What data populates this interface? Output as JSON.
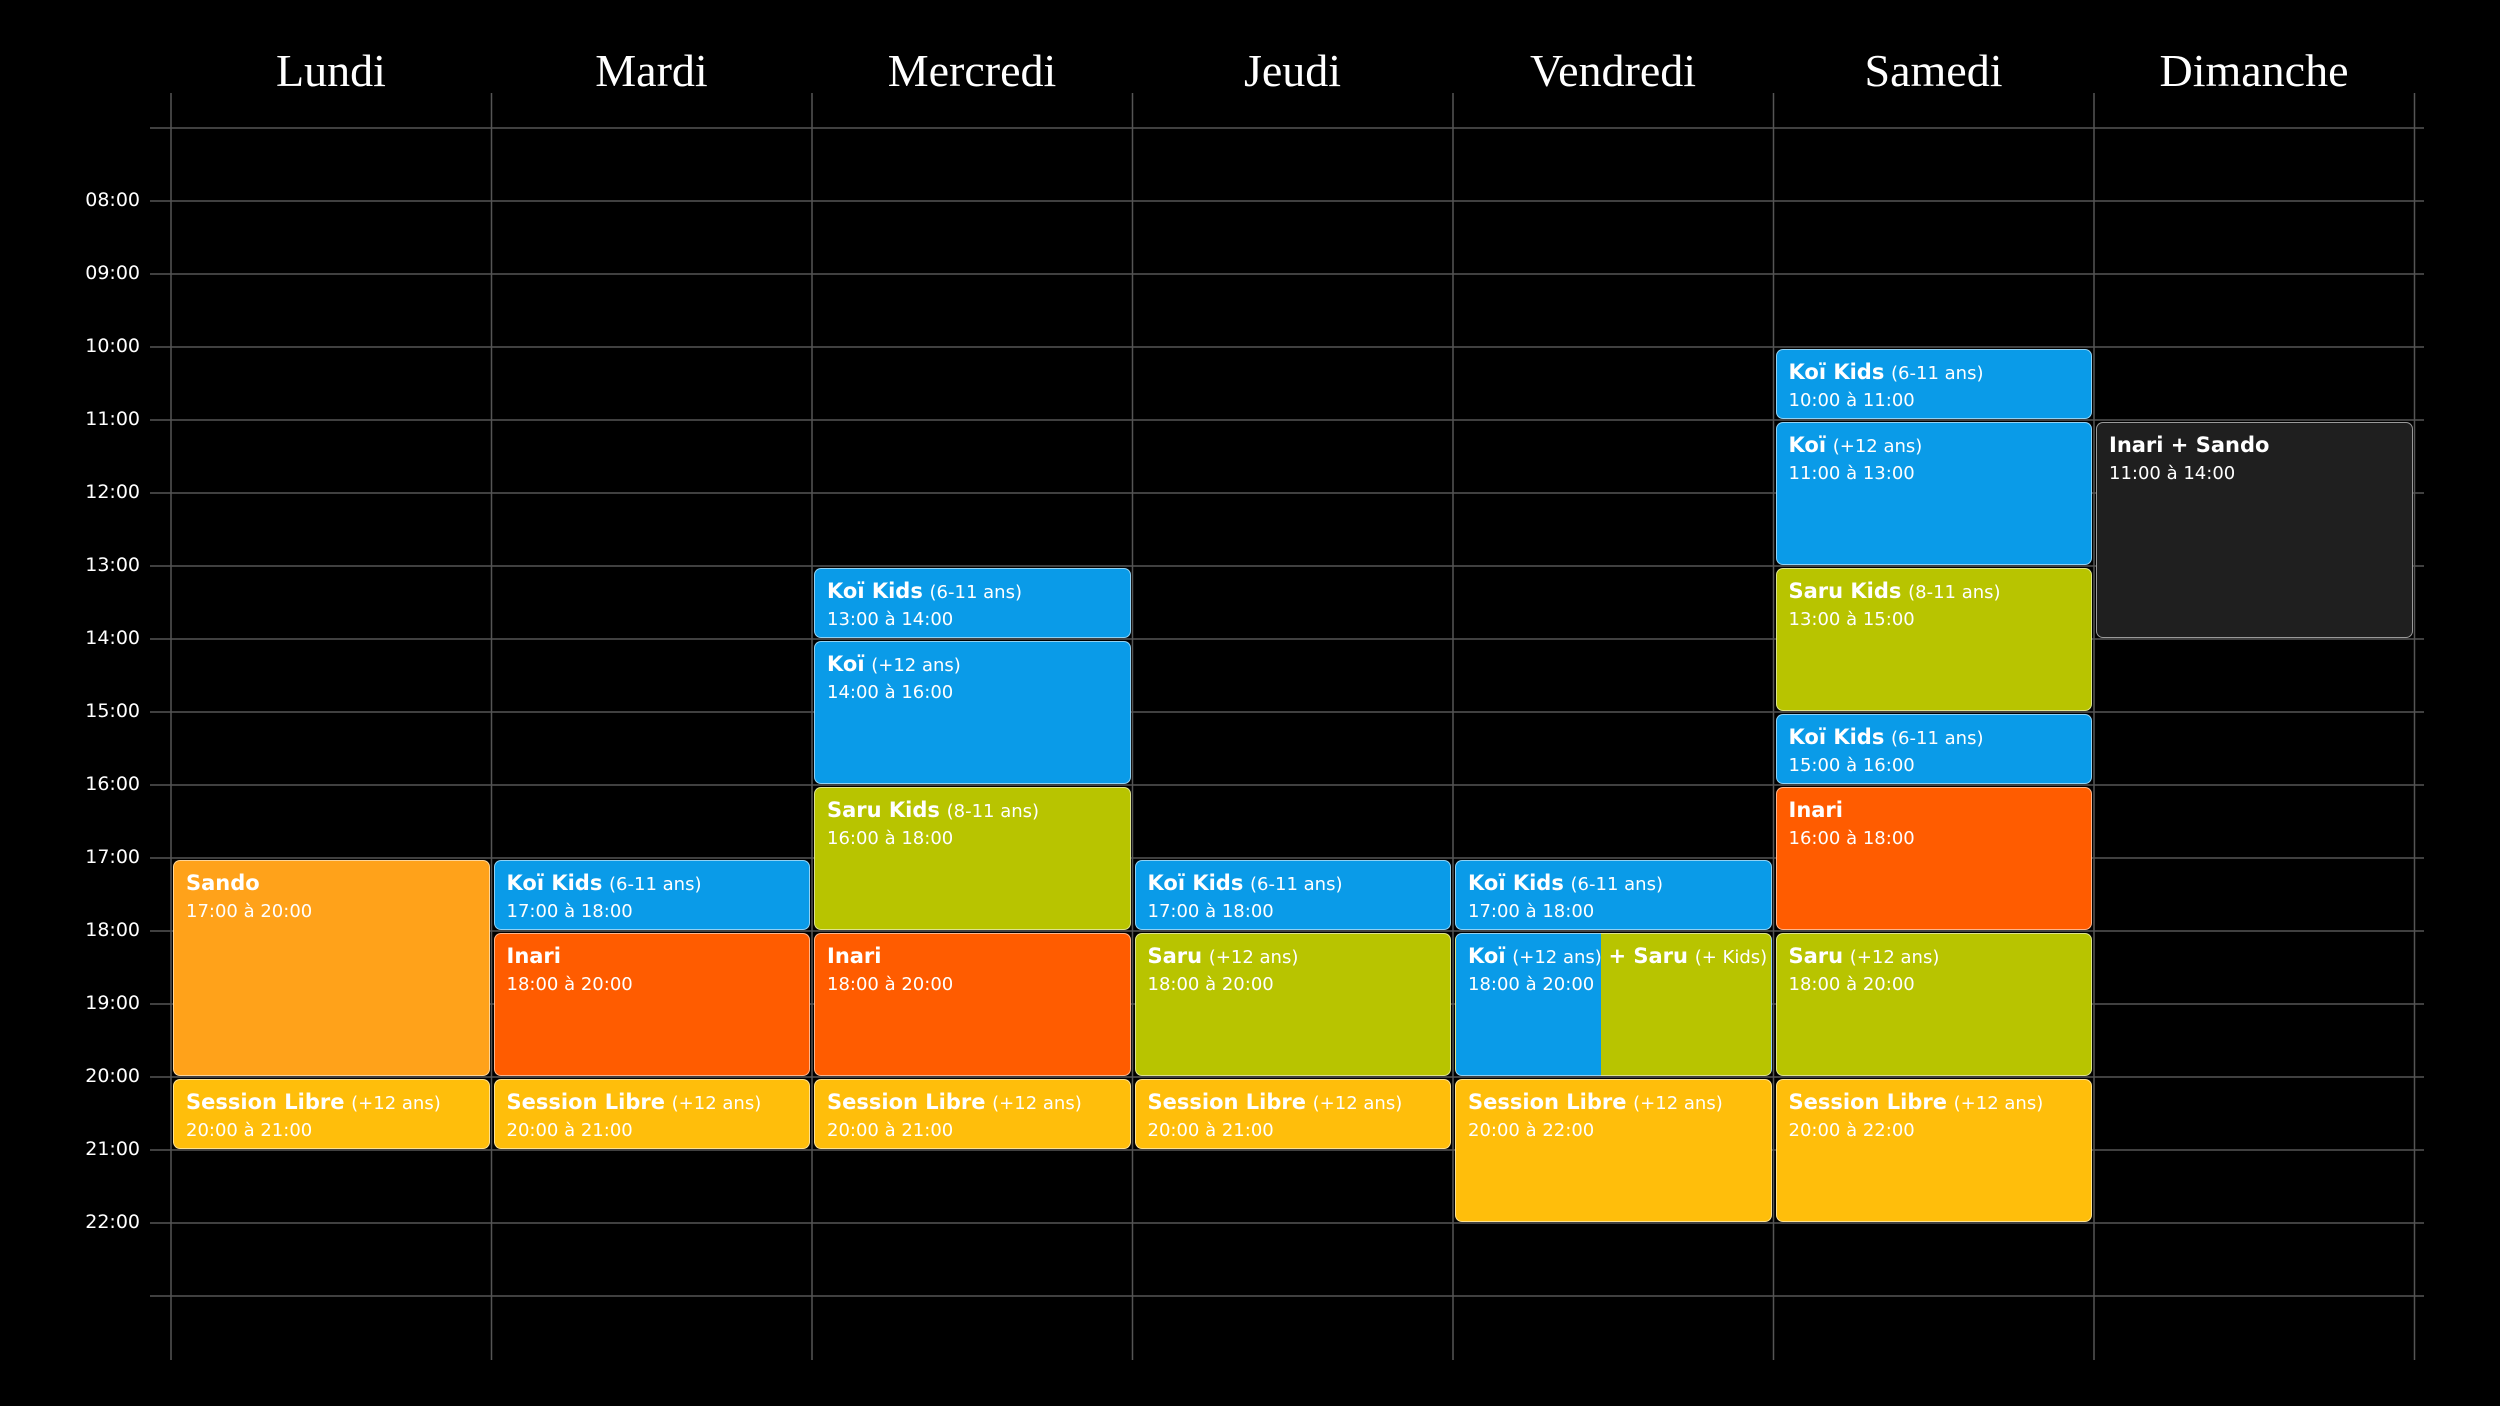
{
  "days": [
    {
      "name": "Lundi",
      "events": [
        {
          "title": "Sando",
          "time": "17:00 à 20:00",
          "color": "#ffa21a"
        },
        {
          "title": "Session Libre",
          "note": "(+12 ans)",
          "time": "20:00 à 21:00",
          "color": "#ffbe0b"
        }
      ]
    },
    {
      "name": "Mardi",
      "events": [
        {
          "title": "Koï Kids",
          "note": "(6-11 ans)",
          "time": "17:00 à 18:00",
          "color": "#0a9be8"
        },
        {
          "title": "Inari",
          "time": "18:00 à 20:00",
          "color": "#ff5c00"
        },
        {
          "title": "Session Libre",
          "note": "(+12 ans)",
          "time": "20:00 à 21:00",
          "color": "#ffbe0b"
        }
      ]
    },
    {
      "name": "Mercredi",
      "events": [
        {
          "title": "Koï Kids",
          "note": "(6-11 ans)",
          "time": "13:00 à 14:00",
          "color": "#0a9be8"
        },
        {
          "title": "Koï",
          "note": "(+12 ans)",
          "time": "14:00 à 16:00",
          "color": "#0a9be8"
        },
        {
          "title": "Saru Kids",
          "note": "(8-11 ans)",
          "time": "16:00 à 18:00",
          "color": "#b8c400"
        },
        {
          "title": "Inari",
          "time": "18:00 à 20:00",
          "color": "#ff5c00"
        },
        {
          "title": "Session Libre",
          "note": "(+12 ans)",
          "time": "20:00 à 21:00",
          "color": "#ffbe0b"
        }
      ]
    },
    {
      "name": "Jeudi",
      "events": [
        {
          "title": "Koï Kids",
          "note": "(6-11 ans)",
          "time": "17:00 à 18:00",
          "color": "#0a9be8"
        },
        {
          "title": "Saru",
          "note": "(+12 ans)",
          "time": "18:00 à 20:00",
          "color": "#b8c400"
        },
        {
          "title": "Session Libre",
          "note": "(+12 ans)",
          "time": "20:00 à 21:00",
          "color": "#ffbe0b"
        }
      ]
    },
    {
      "name": "Vendredi",
      "events": [
        {
          "title": "Koï Kids",
          "note": "(6-11 ans)",
          "time": "17:00 à 18:00",
          "color": "#0a9be8"
        },
        {
          "title": "Koï",
          "note": "(+12 ans)",
          "title2": "+ Saru",
          "note2": "(+ Kids)",
          "time": "18:00 à 20:00",
          "color": "#0a9be8",
          "color2": "#b8c400"
        },
        {
          "title": "Session Libre",
          "note": "(+12 ans)",
          "time": "20:00 à 22:00",
          "color": "#ffbe0b"
        }
      ]
    },
    {
      "name": "Samedi",
      "events": [
        {
          "title": "Koï Kids",
          "note": "(6-11 ans)",
          "time": "10:00 à 11:00",
          "color": "#0a9be8"
        },
        {
          "title": "Koï",
          "note": "(+12 ans)",
          "time": "11:00 à 13:00",
          "color": "#0a9be8"
        },
        {
          "title": "Saru Kids",
          "note": "(8-11 ans)",
          "time": "13:00 à 15:00",
          "color": "#b8c400"
        },
        {
          "title": "Koï Kids",
          "note": "(6-11 ans)",
          "time": "15:00 à 16:00",
          "color": "#0a9be8"
        },
        {
          "title": "Inari",
          "time": "16:00 à 18:00",
          "color": "#ff5c00"
        },
        {
          "title": "Saru",
          "note": "(+12 ans)",
          "time": "18:00 à 20:00",
          "color": "#b8c400"
        },
        {
          "title": "Session Libre",
          "note": "(+12 ans)",
          "time": "20:00 à 22:00",
          "color": "#ffbe0b"
        }
      ]
    },
    {
      "name": "Dimanche",
      "events": [
        {
          "title": "Inari + Sando",
          "time": "11:00 à 14:00",
          "color": "#1f1f1f"
        }
      ]
    }
  ],
  "hours": [
    "08:00",
    "09:00",
    "10:00",
    "11:00",
    "12:00",
    "13:00",
    "14:00",
    "15:00",
    "16:00",
    "17:00",
    "18:00",
    "19:00",
    "20:00",
    "21:00",
    "22:00"
  ]
}
